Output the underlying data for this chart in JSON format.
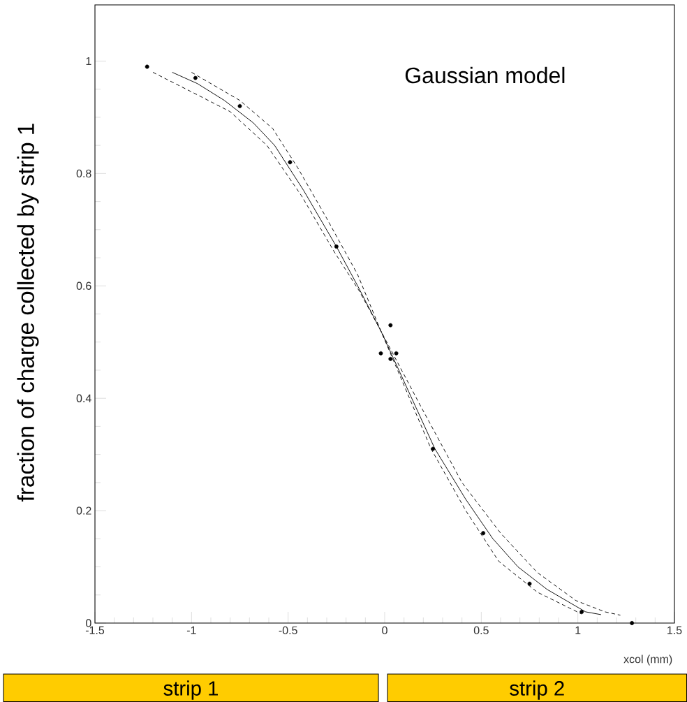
{
  "chart_data": {
    "type": "scatter",
    "title": "Gaussian model",
    "xlabel": "xcol (mm)",
    "ylabel": "fraction of charge collected by strip 1",
    "xlim": [
      -1.5,
      1.5
    ],
    "ylim": [
      0,
      1.1
    ],
    "xticks": [
      -1.5,
      -1,
      -0.5,
      0,
      0.5,
      1,
      1.5
    ],
    "yticks": [
      0,
      0.2,
      0.4,
      0.6,
      0.8,
      1
    ],
    "annotations": [
      "strip 1",
      "strip 2"
    ],
    "series": [
      {
        "marker": "circle",
        "color": "#000000",
        "x": [
          -1.23,
          -0.98,
          -0.75,
          -0.49,
          -0.25,
          -0.02,
          0.03,
          0.03,
          0.06,
          0.25,
          0.51,
          0.75,
          1.02,
          1.28
        ],
        "values": [
          0.99,
          0.97,
          0.92,
          0.82,
          0.67,
          0.48,
          0.53,
          0.47,
          0.48,
          0.31,
          0.16,
          0.07,
          0.02,
          0.0
        ]
      },
      {
        "type": "line",
        "line_style": "solid",
        "marker": "none",
        "color": "#000000",
        "x": [
          -1.1,
          -0.97,
          -0.83,
          -0.68,
          -0.57,
          -0.42,
          -0.25,
          -0.14,
          -0.02,
          0.26,
          0.42,
          0.56,
          0.69,
          0.84,
          1.04,
          1.12
        ],
        "values": [
          0.98,
          0.96,
          0.93,
          0.89,
          0.85,
          0.77,
          0.67,
          0.6,
          0.52,
          0.31,
          0.22,
          0.15,
          0.1,
          0.06,
          0.02,
          0.015
        ]
      },
      {
        "type": "line",
        "line_style": "dashed",
        "marker": "none",
        "color": "#000000",
        "x": [
          -1.0,
          -0.75,
          -0.58,
          -0.45,
          -0.3,
          -0.14,
          -0.02,
          0.18,
          0.4,
          0.6,
          0.79,
          0.99,
          1.14,
          1.22
        ],
        "values": [
          0.98,
          0.93,
          0.88,
          0.81,
          0.72,
          0.62,
          0.52,
          0.39,
          0.25,
          0.16,
          0.09,
          0.04,
          0.02,
          0.014
        ]
      },
      {
        "type": "line",
        "line_style": "dashed",
        "marker": "none",
        "color": "#000000",
        "x": [
          -1.2,
          -0.97,
          -0.8,
          -0.61,
          -0.43,
          -0.26,
          -0.13,
          -0.02,
          0.24,
          0.42,
          0.59,
          0.79,
          1.02
        ],
        "values": [
          0.98,
          0.94,
          0.91,
          0.85,
          0.76,
          0.66,
          0.59,
          0.52,
          0.31,
          0.2,
          0.11,
          0.055,
          0.016
        ]
      }
    ]
  }
}
